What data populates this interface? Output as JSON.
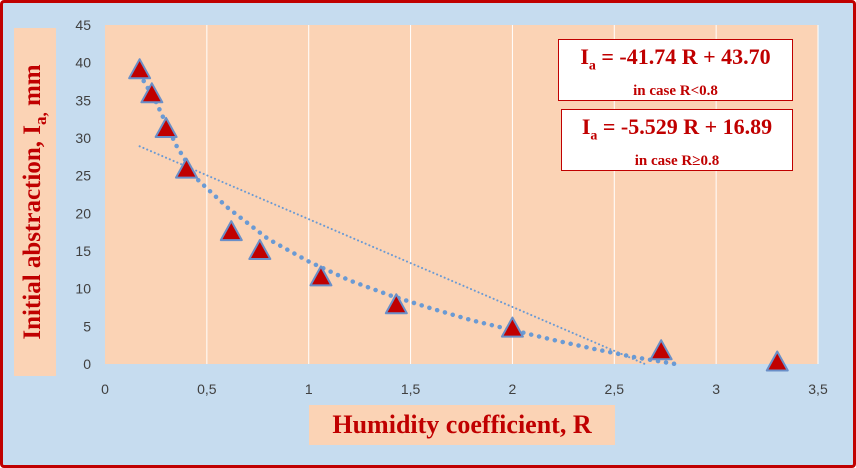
{
  "chart_data": {
    "type": "scatter",
    "xlabel": "Humidity coefficient, R",
    "ylabel": {
      "prefix": "Initial  abstraction, I",
      "sub": "a,",
      "suffix": "  mm"
    },
    "xlim": [
      0,
      3.5
    ],
    "ylim": [
      0,
      45
    ],
    "xticks": [
      "0",
      "0,5",
      "1",
      "1,5",
      "2",
      "2,5",
      "3",
      "3,5"
    ],
    "yticks": [
      "0",
      "5",
      "10",
      "15",
      "20",
      "25",
      "30",
      "35",
      "40",
      "45"
    ],
    "grid": "vertical",
    "points": [
      {
        "x": 0.17,
        "y": 39.0
      },
      {
        "x": 0.23,
        "y": 35.8
      },
      {
        "x": 0.3,
        "y": 31.2
      },
      {
        "x": 0.4,
        "y": 25.8
      },
      {
        "x": 0.62,
        "y": 17.5
      },
      {
        "x": 0.76,
        "y": 15.0
      },
      {
        "x": 1.06,
        "y": 11.5
      },
      {
        "x": 1.43,
        "y": 7.8
      },
      {
        "x": 2.0,
        "y": 4.7
      },
      {
        "x": 2.73,
        "y": 1.7
      },
      {
        "x": 3.3,
        "y": 0.2
      }
    ],
    "trendlines": [
      {
        "kind": "polynomial",
        "points": [
          [
            0.17,
            38.5
          ],
          [
            0.25,
            34.8
          ],
          [
            0.35,
            29.0
          ],
          [
            0.45,
            24.6
          ],
          [
            0.6,
            20.8
          ],
          [
            0.8,
            16.6
          ],
          [
            1.0,
            13.6
          ],
          [
            1.2,
            11.1
          ],
          [
            1.4,
            9.1
          ],
          [
            1.6,
            7.4
          ],
          [
            1.8,
            5.8
          ],
          [
            2.0,
            4.5
          ],
          [
            2.2,
            3.2
          ],
          [
            2.4,
            2.0
          ],
          [
            2.6,
            0.9
          ],
          [
            2.8,
            0.0
          ]
        ]
      },
      {
        "kind": "linear",
        "points": [
          [
            0.17,
            28.9
          ],
          [
            2.65,
            0.0
          ]
        ]
      }
    ],
    "marker_color": "#c00000",
    "marker_edge": "#6a8fc8",
    "trend_color": "#6a9ad4",
    "plot_bg": "#fbd3b5"
  },
  "equations": [
    {
      "main": "I",
      "sub": "a",
      "rest": " = -41.74 R + 43.70",
      "condition": "in case R<0.8"
    },
    {
      "main": "I",
      "sub": "a",
      "rest": " = -5.529 R + 16.89",
      "condition": "in case R≥0.8"
    }
  ]
}
